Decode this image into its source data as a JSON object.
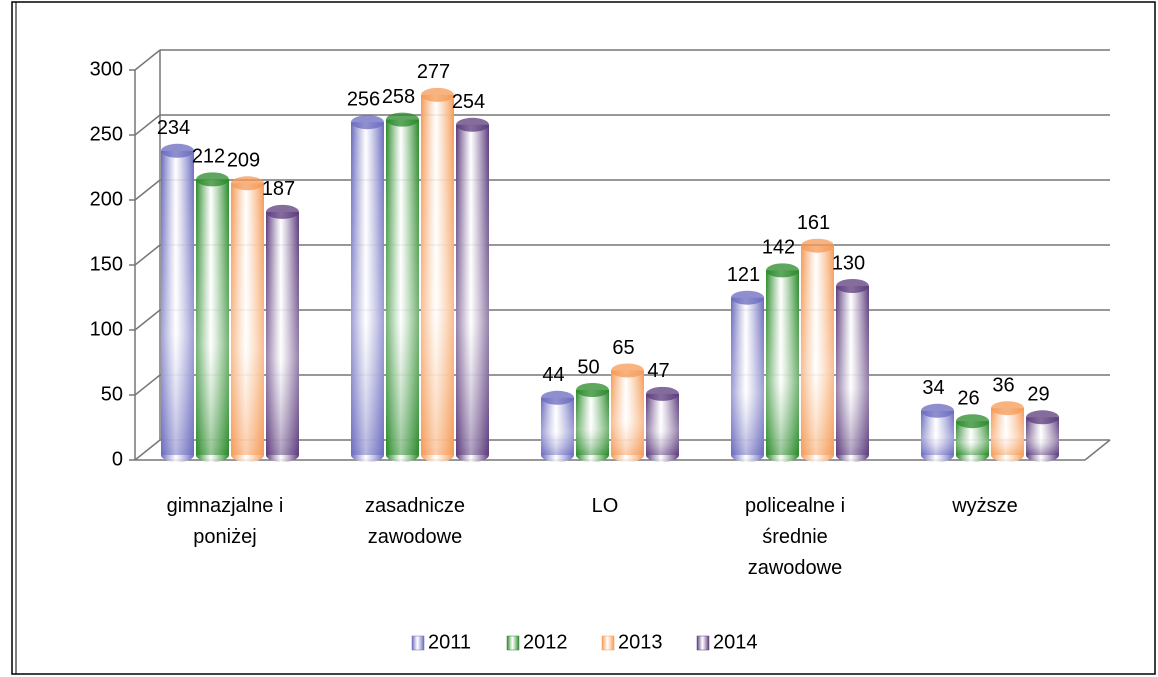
{
  "chart_data": {
    "type": "bar3d",
    "categories": [
      "gimnazjalne i poniżej",
      "zasadnicze zawodowe",
      "LO",
      "policealne i średnie zawodowe",
      "wyższe"
    ],
    "series": [
      {
        "name": "2011",
        "color": "#6a6abf",
        "values": [
          234,
          256,
          44,
          121,
          34
        ]
      },
      {
        "name": "2012",
        "color": "#2a8a2a",
        "values": [
          212,
          258,
          50,
          142,
          26
        ]
      },
      {
        "name": "2013",
        "color": "#f59a55",
        "values": [
          209,
          277,
          65,
          161,
          36
        ]
      },
      {
        "name": "2014",
        "color": "#5b3b7c",
        "values": [
          187,
          254,
          47,
          130,
          29
        ]
      }
    ],
    "ylim": [
      0,
      300
    ],
    "yticks": [
      0,
      50,
      100,
      150,
      200,
      250,
      300
    ],
    "grid": true,
    "legend": "bottom"
  }
}
